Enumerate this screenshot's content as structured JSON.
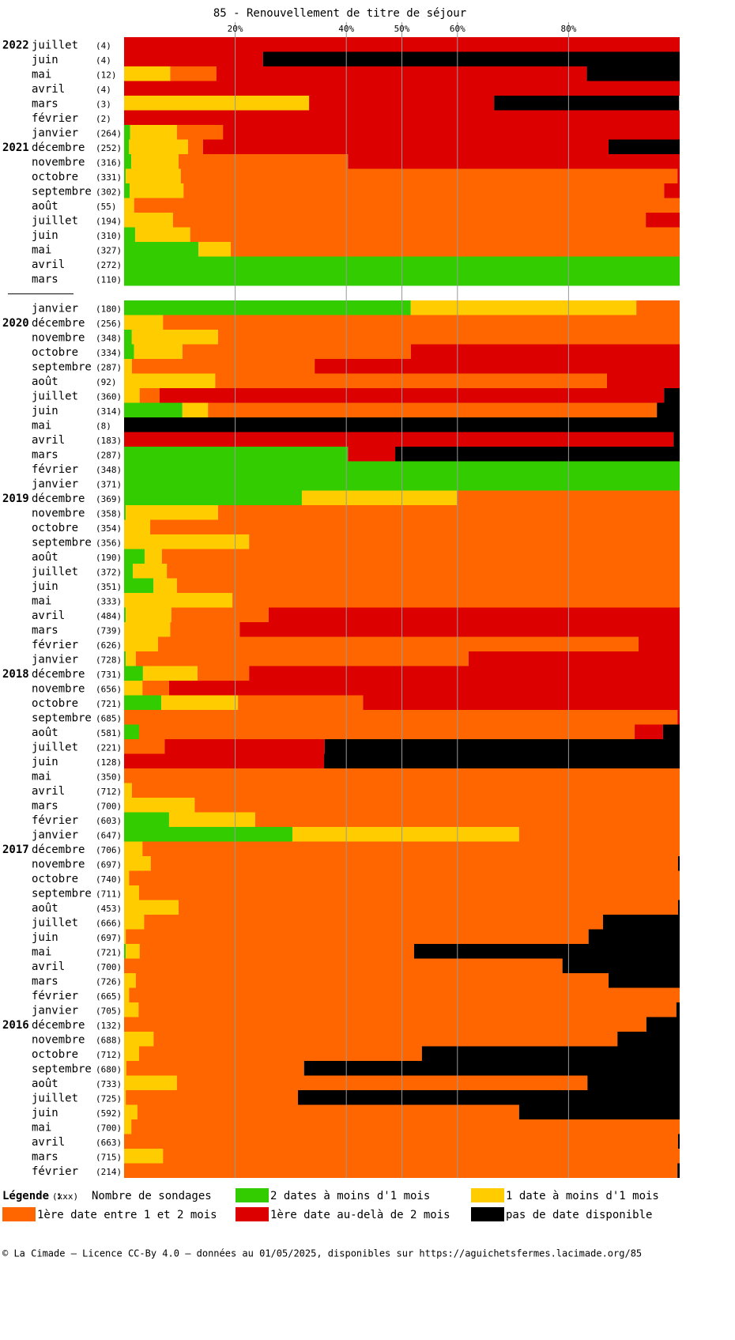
{
  "chart_data": {
    "type": "stacked-bar-horizontal",
    "title": "85 - Renouvellement de titre de séjour",
    "xlim": [
      0,
      100
    ],
    "xticks": [
      {
        "value": 20,
        "label": "20%"
      },
      {
        "value": 40,
        "label": "40%"
      },
      {
        "value": 50,
        "label": "50%"
      },
      {
        "value": 60,
        "label": "60%"
      },
      {
        "value": 80,
        "label": "80%"
      }
    ],
    "grid": true,
    "row_years": [
      "2022",
      null,
      null,
      null,
      null,
      null,
      null,
      "2021",
      null,
      null,
      null,
      null,
      null,
      null,
      null,
      null,
      null,
      null,
      null,
      "2020",
      null,
      null,
      null,
      null,
      null,
      null,
      null,
      null,
      null,
      null,
      null,
      "2019",
      null,
      null,
      null,
      null,
      null,
      null,
      null,
      null,
      null,
      null,
      null,
      "2018",
      null,
      null,
      null,
      null,
      null,
      null,
      null,
      null,
      null,
      null,
      null,
      "2017",
      null,
      null,
      null,
      null,
      null,
      null,
      null,
      null,
      null,
      null,
      null,
      "2016",
      null,
      null,
      null,
      null,
      null,
      null,
      null,
      null,
      null,
      null
    ],
    "categories": [
      "juillet",
      "juin",
      "mai",
      "avril",
      "mars",
      "février",
      "janvier",
      "décembre",
      "novembre",
      "octobre",
      "septembre",
      "août",
      "juillet",
      "juin",
      "mai",
      "avril",
      "mars",
      null,
      "janvier",
      "décembre",
      "novembre",
      "octobre",
      "septembre",
      "août",
      "juillet",
      "juin",
      "mai",
      "avril",
      "mars",
      "février",
      "janvier",
      "décembre",
      "novembre",
      "octobre",
      "septembre",
      "août",
      "juillet",
      "juin",
      "mai",
      "avril",
      "mars",
      "février",
      "janvier",
      "décembre",
      "novembre",
      "octobre",
      "septembre",
      "août",
      "juillet",
      "juin",
      "mai",
      "avril",
      "mars",
      "février",
      "janvier",
      "décembre",
      "novembre",
      "octobre",
      "septembre",
      "août",
      "juillet",
      "juin",
      "mai",
      "avril",
      "mars",
      "février",
      "janvier",
      "décembre",
      "novembre",
      "octobre",
      "septembre",
      "août",
      "juillet",
      "juin",
      "mai",
      "avril",
      "mars",
      "février"
    ],
    "counts": [
      "(4)",
      "(4)",
      "(12)",
      "(4)",
      "(3)",
      "(2)",
      "(264)",
      "(252)",
      "(316)",
      "(331)",
      "(302)",
      "(55)",
      "(194)",
      "(310)",
      "(327)",
      "(272)",
      "(110)",
      null,
      "(180)",
      "(256)",
      "(348)",
      "(334)",
      "(287)",
      "(92)",
      "(360)",
      "(314)",
      "(8)",
      "(183)",
      "(287)",
      "(348)",
      "(371)",
      "(369)",
      "(358)",
      "(354)",
      "(356)",
      "(190)",
      "(372)",
      "(351)",
      "(333)",
      "(484)",
      "(739)",
      "(626)",
      "(728)",
      "(731)",
      "(656)",
      "(721)",
      "(685)",
      "(581)",
      "(221)",
      "(128)",
      "(350)",
      "(712)",
      "(700)",
      "(603)",
      "(647)",
      "(706)",
      "(697)",
      "(740)",
      "(711)",
      "(453)",
      "(666)",
      "(697)",
      "(721)",
      "(700)",
      "(726)",
      "(665)",
      "(705)",
      "(132)",
      "(688)",
      "(712)",
      "(680)",
      "(733)",
      "(725)",
      "(592)",
      "(700)",
      "(663)",
      "(715)",
      "(214)"
    ],
    "series": [
      {
        "name": "2 dates à moins d'1 mois",
        "color": "#33cc00",
        "values": [
          0,
          0,
          0,
          0,
          0,
          0,
          1.1,
          0.9,
          1.3,
          0.3,
          1,
          0,
          0,
          2,
          13.4,
          100,
          100,
          null,
          51.6,
          0,
          1.4,
          1.8,
          0,
          0,
          0,
          10.5,
          0,
          0,
          40.3,
          100,
          100,
          32,
          0.3,
          0,
          0,
          3.7,
          1.6,
          5.3,
          0,
          0.3,
          0,
          0,
          0.3,
          3.4,
          0,
          6.7,
          0,
          2.7,
          0,
          0,
          0,
          0,
          0,
          8.1,
          30.3,
          0,
          0,
          0,
          0,
          0,
          0,
          0,
          0.3,
          0,
          0,
          0,
          0,
          0,
          0,
          0,
          0,
          0,
          0,
          0,
          0,
          0,
          0,
          0
        ]
      },
      {
        "name": "1 date à moins d'1 mois",
        "color": "#ffcc00",
        "values": [
          0,
          0,
          8.3,
          0,
          33.3,
          0,
          8.4,
          10.6,
          8.5,
          9.9,
          9.7,
          1.8,
          8.8,
          9.9,
          5.8,
          0,
          0,
          null,
          40.6,
          7,
          15.5,
          8.7,
          1.4,
          16.4,
          2.8,
          4.6,
          0,
          0,
          0,
          0,
          0,
          27.9,
          16.6,
          4.7,
          22.5,
          3.1,
          6.1,
          4.2,
          19.5,
          8.2,
          8.3,
          6.1,
          1.8,
          9.8,
          3.3,
          13.8,
          0,
          0,
          0,
          0,
          0,
          1.4,
          12.7,
          15.5,
          40.8,
          3.3,
          4.8,
          0.9,
          2.7,
          9.8,
          3.6,
          0.3,
          2.5,
          0,
          2.1,
          0.9,
          2.6,
          0,
          5.3,
          2.7,
          0.4,
          9.5,
          0.3,
          2.4,
          1.3,
          0,
          7,
          0
        ]
      },
      {
        "name": "1ère date entre 1 et 2 mois",
        "color": "#ff6600",
        "values": [
          0,
          0,
          8.3,
          0,
          0,
          0,
          8.3,
          2.7,
          30.5,
          89.4,
          86.5,
          98.2,
          85.1,
          88.1,
          80.8,
          0,
          0,
          null,
          7.8,
          93,
          83.1,
          41.1,
          32.9,
          70.5,
          3.6,
          80.8,
          0,
          0,
          0,
          0,
          0,
          40.1,
          83.1,
          95.3,
          77.5,
          93.2,
          92.3,
          90.5,
          80.5,
          17.5,
          12.5,
          86.5,
          59.9,
          9.3,
          4.8,
          22.5,
          99.6,
          89.2,
          7.3,
          0,
          100,
          98.6,
          87.3,
          76.4,
          28.9,
          96.7,
          94.9,
          99.1,
          97.3,
          89.9,
          82.6,
          83.3,
          49.4,
          78.9,
          85.1,
          99.1,
          96.8,
          94,
          83.5,
          50.9,
          32,
          73.9,
          31,
          68.7,
          98.7,
          99.7,
          93,
          99.6
        ]
      },
      {
        "name": "1ère date au-delà de 2 mois",
        "color": "#dd0000",
        "values": [
          100,
          25,
          66.7,
          100,
          33.3,
          100,
          82.2,
          73,
          59.7,
          0.4,
          2.8,
          0,
          6.1,
          0,
          0,
          0,
          0,
          null,
          0,
          0,
          0,
          48.4,
          65.7,
          13.1,
          90.8,
          0,
          0,
          98.9,
          8.5,
          0,
          0,
          0,
          0,
          0,
          0,
          0,
          0,
          0,
          0,
          74,
          79.2,
          7.4,
          38,
          77.5,
          91.9,
          57,
          0.4,
          5.1,
          28.8,
          36,
          0,
          0,
          0,
          0,
          0,
          0,
          0,
          0,
          0,
          0,
          0,
          0,
          0,
          0,
          0,
          0,
          0,
          0,
          0,
          0,
          0,
          0,
          0,
          0,
          0,
          0,
          0,
          0
        ]
      },
      {
        "name": "pas de date disponible",
        "color": "#000000",
        "values": [
          0,
          75,
          16.7,
          0,
          33.3,
          0,
          0,
          12.8,
          0,
          0,
          0,
          0,
          0,
          0,
          0,
          0,
          0,
          null,
          0,
          0,
          0,
          0,
          0,
          0,
          2.8,
          4.1,
          100,
          1.1,
          51.2,
          0,
          0,
          0,
          0,
          0,
          0,
          0,
          0,
          0,
          0,
          0,
          0,
          0,
          0,
          0,
          0,
          0,
          0,
          3,
          63.9,
          64,
          0,
          0,
          0,
          0,
          0,
          0,
          0.3,
          0,
          0,
          0.3,
          13.8,
          16.4,
          47.8,
          21.1,
          12.8,
          0,
          0.6,
          6,
          11.2,
          46.4,
          67.6,
          16.6,
          68.7,
          28.9,
          0,
          0.3,
          0,
          0.4
        ]
      }
    ],
    "legend_title": "Légende :",
    "count_key": "(xxx)",
    "count_key_label": "Nombre de sondages",
    "footer": "© La Cimade – Licence CC-By 4.0 – données au 01/05/2025, disponibles sur https://aguichetsfermes.lacimade.org/85"
  }
}
